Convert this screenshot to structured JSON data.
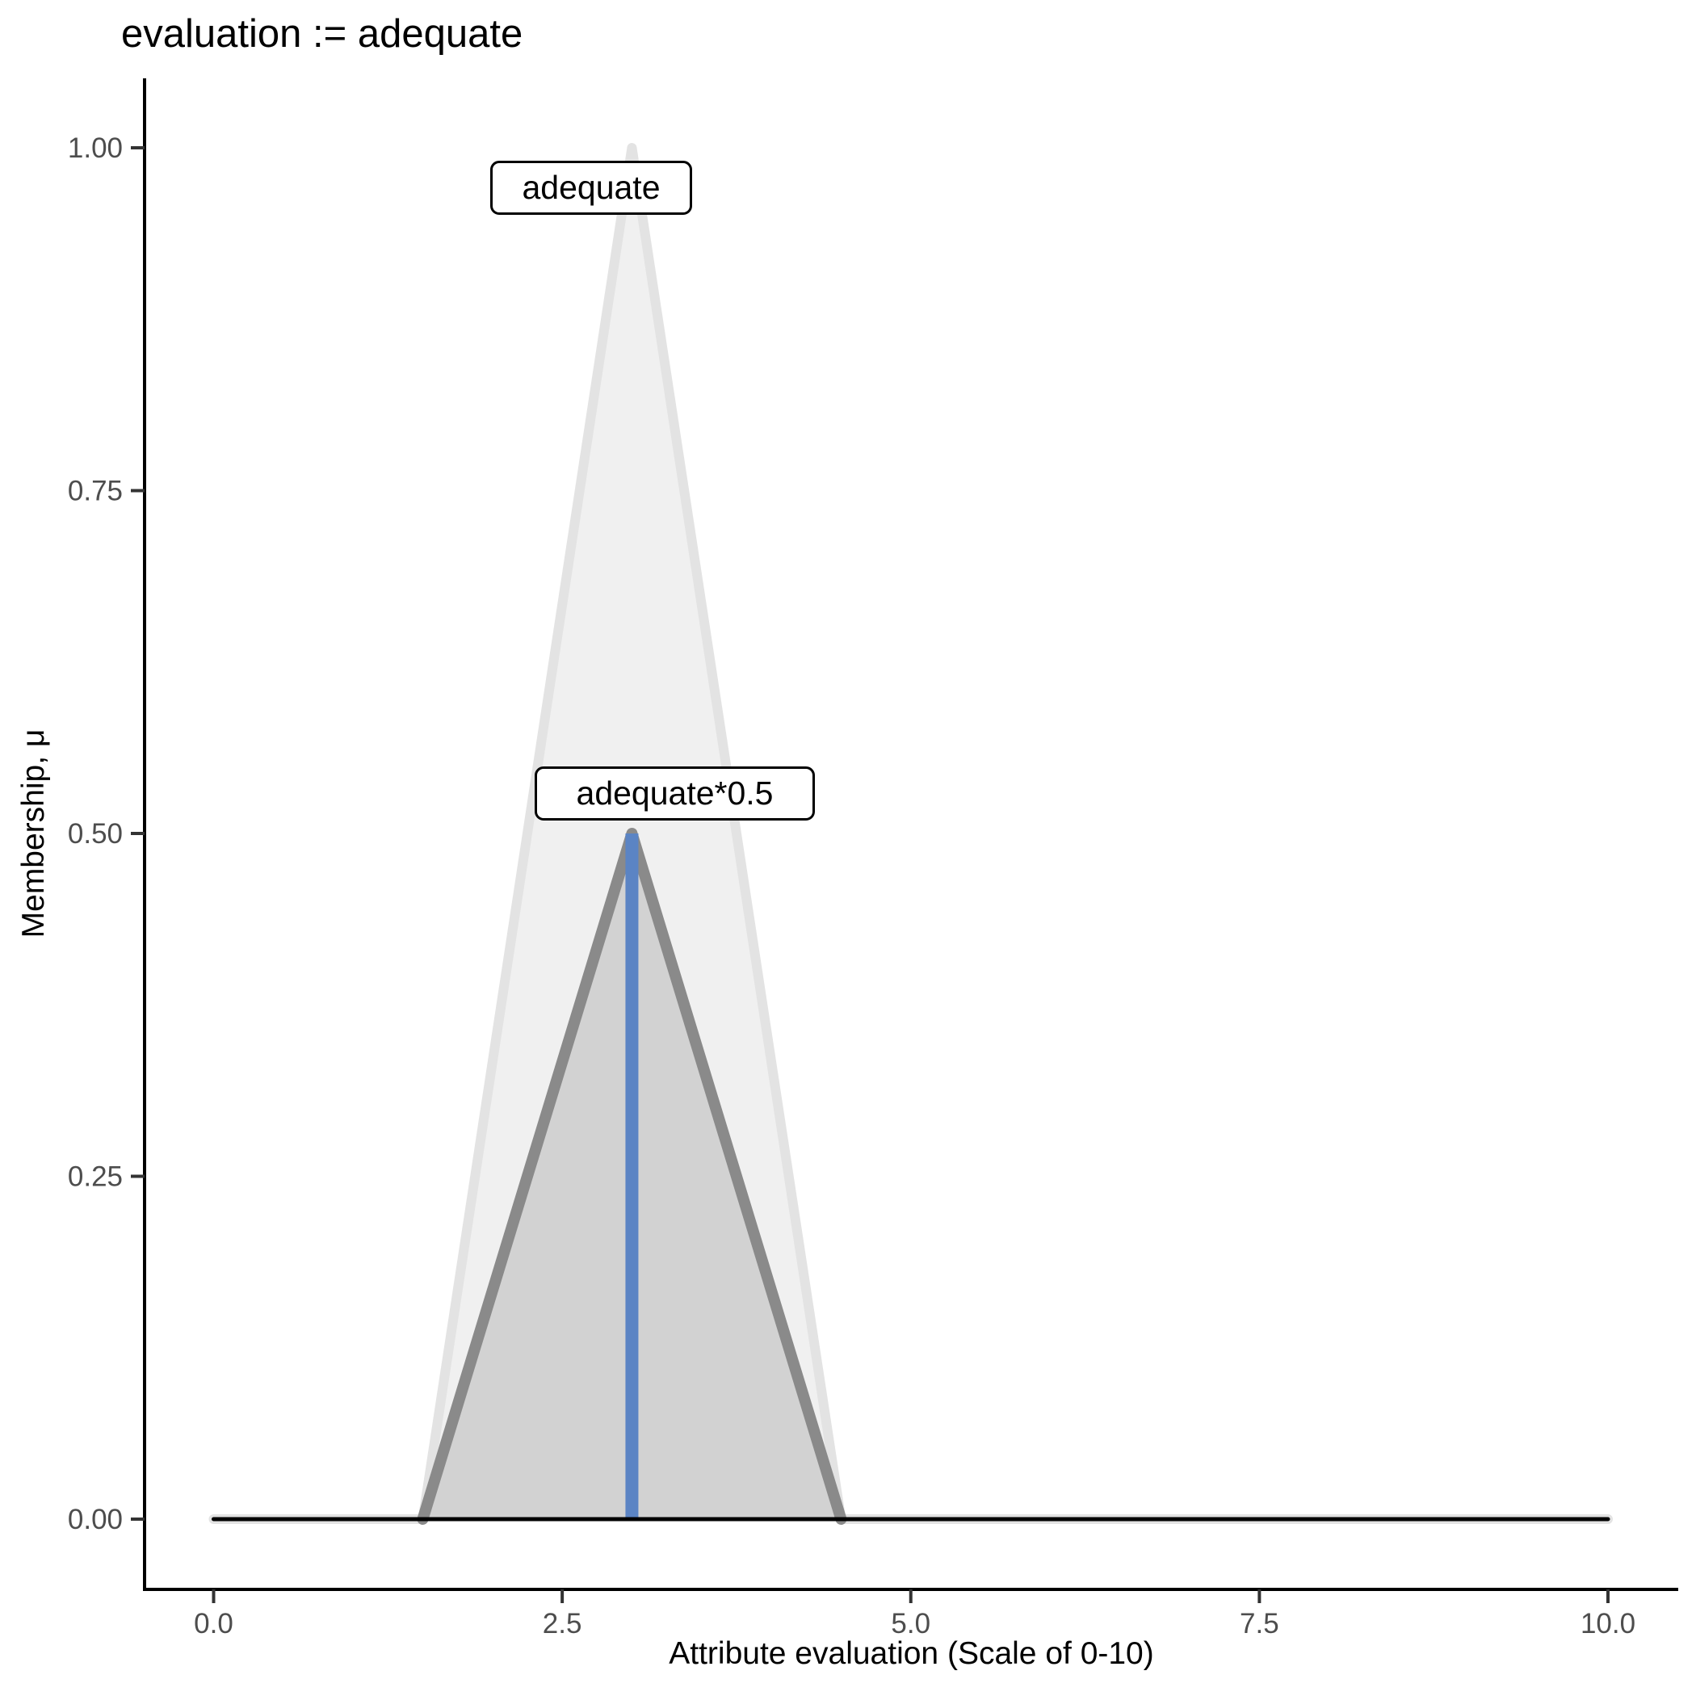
{
  "chart_data": {
    "type": "line",
    "title": "evaluation := adequate",
    "xlabel": "Attribute evaluation (Scale of 0-10)",
    "ylabel": "Membership, μ",
    "xlim": [
      0,
      10
    ],
    "ylim": [
      0,
      1
    ],
    "grid": false,
    "legend": "none",
    "x_ticks": {
      "values": [
        0.0,
        2.5,
        5.0,
        7.5,
        10.0
      ],
      "labels": [
        "0.0",
        "2.5",
        "5.0",
        "7.5",
        "10.0"
      ]
    },
    "y_ticks": {
      "values": [
        0.0,
        0.25,
        0.5,
        0.75,
        1.0
      ],
      "labels": [
        "0.00",
        "0.25",
        "0.50",
        "0.75",
        "1.00"
      ]
    },
    "series": [
      {
        "name": "adequate-membership-function",
        "points": [
          [
            0,
            0
          ],
          [
            1.5,
            0
          ],
          [
            3,
            1
          ],
          [
            4.5,
            0
          ],
          [
            10,
            0
          ]
        ],
        "stroke": "#e3e3e3",
        "fill": "#f0f0f0",
        "stroke_width": 12,
        "close_stroke": false
      },
      {
        "name": "adequate-scaled-membership-function",
        "points": [
          [
            1.5,
            0
          ],
          [
            3,
            0.5
          ],
          [
            4.5,
            0
          ]
        ],
        "stroke": "#8a8a8a",
        "fill": "#d2d2d2",
        "stroke_width": 14,
        "close_stroke": false
      },
      {
        "name": "implication-level-line",
        "points": [
          [
            3,
            0
          ],
          [
            3,
            0.5
          ]
        ],
        "stroke": "#5b84c4",
        "fill": "none",
        "stroke_width": 16,
        "close_stroke": false
      },
      {
        "name": "universe-baseline",
        "points": [
          [
            0,
            0
          ],
          [
            10,
            0
          ]
        ],
        "stroke": "#000000",
        "fill": "none",
        "stroke_width": 5,
        "close_stroke": false
      }
    ],
    "annotations": [
      {
        "label": "adequate",
        "anchor_x": 3,
        "anchor_y": 1.0
      },
      {
        "label": "adequate*0.5",
        "anchor_x": 3,
        "anchor_y": 0.5
      }
    ],
    "colors": {
      "axis_line": "#000000",
      "tick_mark": "#333333",
      "tick_label": "#4d4d4d",
      "background": "#ffffff"
    }
  }
}
